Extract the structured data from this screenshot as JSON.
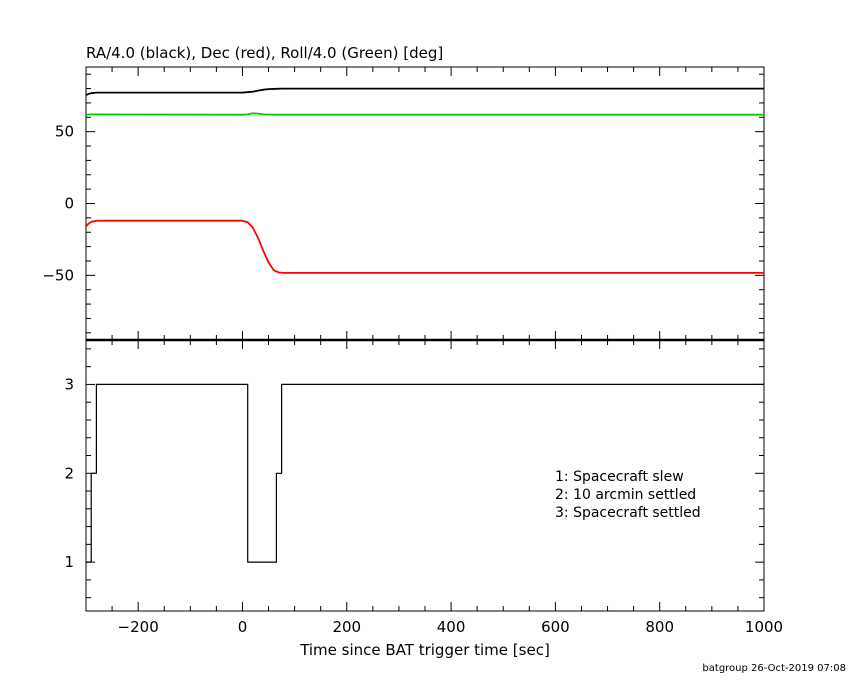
{
  "chart_data": [
    {
      "type": "line",
      "title": "RA/4.0 (black), Dec (red), Roll/4.0 (Green) [deg]",
      "xlim": [
        -300,
        1000
      ],
      "ylim": [
        -95,
        95
      ],
      "y_ticks": [
        50,
        0,
        -50
      ],
      "y_tick_labels": [
        "50",
        "0",
        "−50"
      ],
      "grid": false,
      "series": [
        {
          "color": "#000000",
          "points": [
            [
              -300,
              75.5
            ],
            [
              -295,
              76.3
            ],
            [
              -290,
              76.8
            ],
            [
              -280,
              77.2
            ],
            [
              0,
              77.2
            ],
            [
              5,
              77.3
            ],
            [
              20,
              77.8
            ],
            [
              30,
              78.6
            ],
            [
              40,
              79.2
            ],
            [
              50,
              79.6
            ],
            [
              65,
              79.8
            ],
            [
              75,
              80.0
            ],
            [
              1000,
              80.0
            ]
          ]
        },
        {
          "color": "#00cc00",
          "points": [
            [
              -300,
              61.8
            ],
            [
              -290,
              62.0
            ],
            [
              0,
              61.8
            ],
            [
              10,
              62.0
            ],
            [
              20,
              62.8
            ],
            [
              30,
              62.6
            ],
            [
              40,
              62.0
            ],
            [
              60,
              61.8
            ],
            [
              1000,
              61.8
            ]
          ]
        },
        {
          "color": "#ff0000",
          "points": [
            [
              -300,
              -16.0
            ],
            [
              -295,
              -14.0
            ],
            [
              -290,
              -12.8
            ],
            [
              -285,
              -12.3
            ],
            [
              -280,
              -12.0
            ],
            [
              0,
              -12.0
            ],
            [
              10,
              -13.0
            ],
            [
              20,
              -17.0
            ],
            [
              30,
              -24.0
            ],
            [
              40,
              -33.0
            ],
            [
              50,
              -41.0
            ],
            [
              60,
              -46.5
            ],
            [
              70,
              -48.0
            ],
            [
              80,
              -48.3
            ],
            [
              1000,
              -48.3
            ]
          ]
        }
      ]
    },
    {
      "type": "line",
      "step": true,
      "xlim": [
        -300,
        1000
      ],
      "ylim": [
        0.45,
        3.5
      ],
      "x_ticks": [
        -200,
        0,
        200,
        400,
        600,
        800,
        1000
      ],
      "x_tick_labels": [
        "−200",
        "0",
        "200",
        "400",
        "600",
        "800",
        "1000"
      ],
      "y_ticks": [
        1,
        2,
        3
      ],
      "y_tick_labels": [
        "1",
        "2",
        "3"
      ],
      "xlabel": "Time since BAT trigger time [sec]",
      "series": [
        {
          "color": "#000000",
          "points": [
            [
              -300,
              1
            ],
            [
              -290,
              1
            ],
            [
              -290,
              2
            ],
            [
              -280,
              2
            ],
            [
              -280,
              3
            ],
            [
              10,
              3
            ],
            [
              10,
              1
            ],
            [
              65,
              1
            ],
            [
              65,
              2
            ],
            [
              75,
              2
            ],
            [
              75,
              3
            ],
            [
              1000,
              3
            ]
          ]
        }
      ],
      "annotations": [
        "1: Spacecraft slew",
        "2: 10 arcmin settled",
        "3: Spacecraft settled"
      ]
    }
  ],
  "footer": "batgroup 26-Oct-2019 07:08"
}
